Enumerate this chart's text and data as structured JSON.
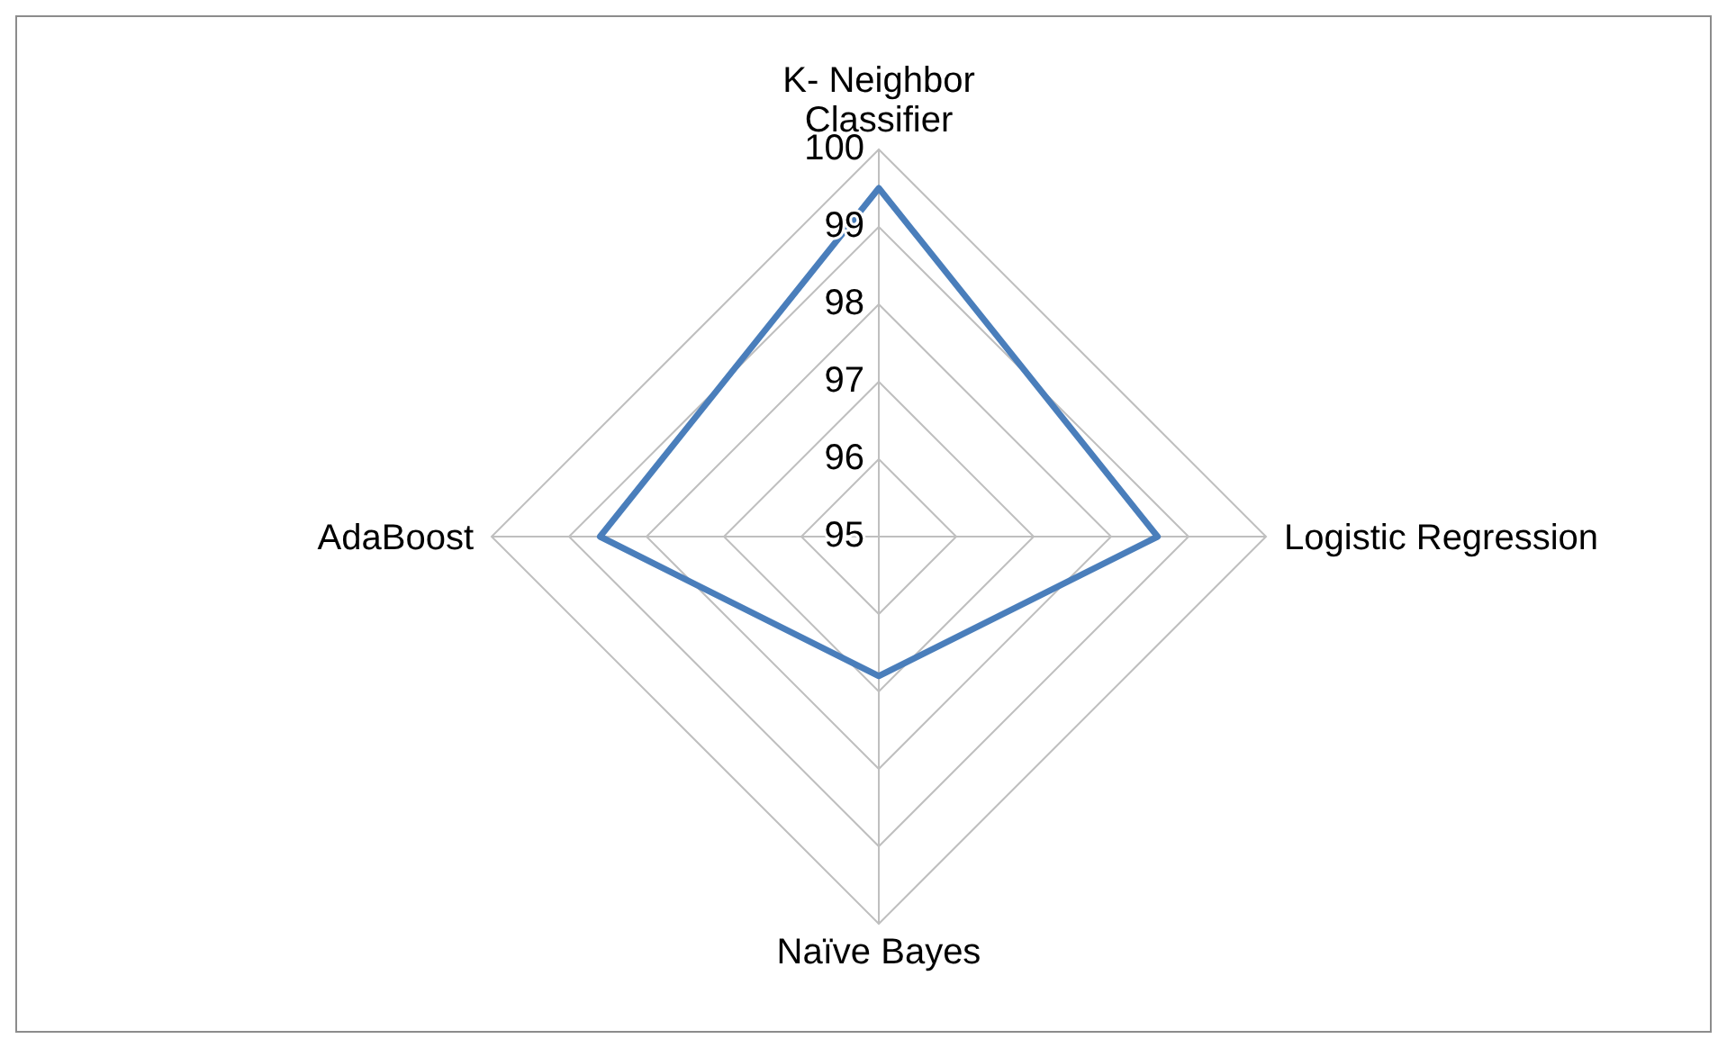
{
  "chart_data": {
    "type": "radar",
    "categories": [
      "K- Neighbor Classifier",
      "Logistic Regression",
      "Naïve Bayes",
      "AdaBoost"
    ],
    "series": [
      {
        "color": "#4a7ebb",
        "values": [
          99.5,
          98.6,
          96.8,
          98.6
        ]
      }
    ],
    "ylim": [
      95,
      100
    ],
    "yticks": [
      95,
      96,
      97,
      98,
      99,
      100
    ],
    "grid": true,
    "marker": "none"
  }
}
